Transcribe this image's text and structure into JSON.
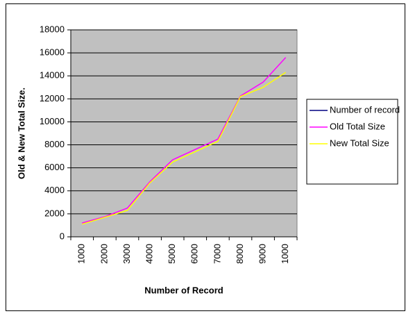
{
  "chart_data": {
    "type": "line",
    "x_label": "Number of Record",
    "y_label": "Old & New Total Size.",
    "categories": [
      "1000",
      "2000",
      "3000",
      "4000",
      "5000",
      "6000",
      "7000",
      "8000",
      "9000",
      "1000"
    ],
    "series": [
      {
        "name": "Number of record",
        "color": "#000080",
        "values": [
          null,
          null,
          null,
          null,
          null,
          null,
          null,
          null,
          null,
          null
        ]
      },
      {
        "name": "Old Total Size",
        "color": "#ff00ff",
        "values": [
          1200,
          1750,
          2500,
          4800,
          6700,
          7600,
          8500,
          12250,
          13450,
          15600
        ]
      },
      {
        "name": "New Total Size",
        "color": "#ffff00",
        "values": [
          1100,
          1700,
          2300,
          4700,
          6500,
          7400,
          8300,
          12200,
          13000,
          14300
        ]
      }
    ],
    "ylim": [
      0,
      18000
    ],
    "yticks": [
      0,
      2000,
      4000,
      6000,
      8000,
      10000,
      12000,
      14000,
      16000,
      18000
    ],
    "grid": true,
    "plot_background": "#c0c0c0",
    "legend": "right"
  }
}
